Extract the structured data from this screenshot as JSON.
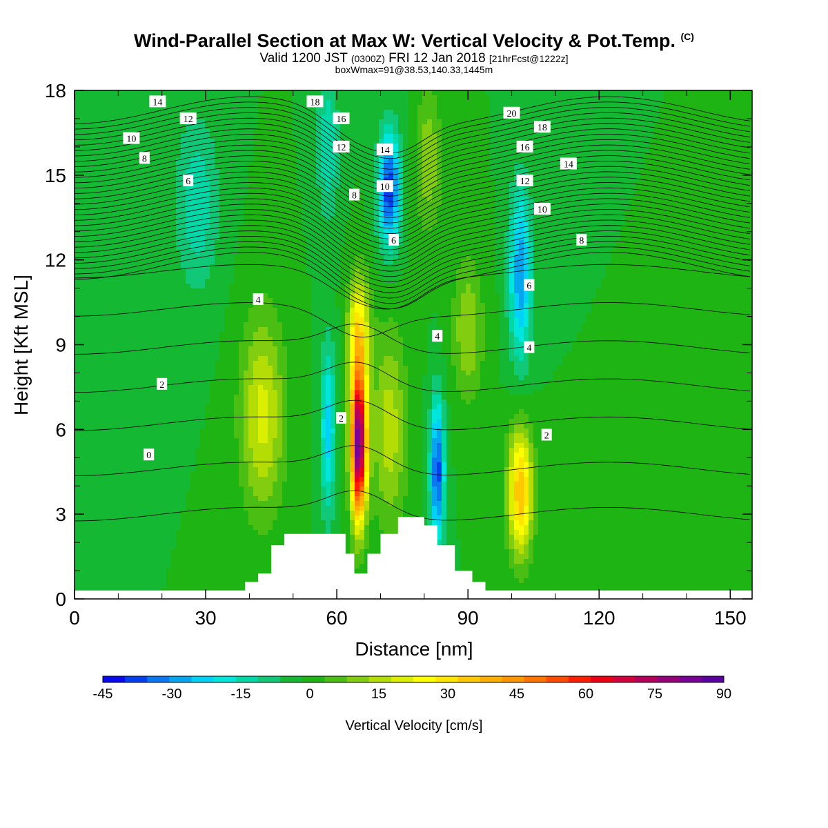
{
  "header": {
    "title": "Wind-Parallel Section at Max W: Vertical Velocity & Pot.Temp.",
    "title_mark": "(C)",
    "valid_prefix": "Valid 1200 JST",
    "valid_utc": "(0300Z)",
    "valid_date": "FRI 12 Jan 2018",
    "forecast_tag": "[21hrFcst@1222z]",
    "boxwmax": "boxWmax=91@38.53,140.33,1445m"
  },
  "colorbar": {
    "label": "Vertical Velocity [cm/s]",
    "tick_labels": [
      "-45",
      "-30",
      "-15",
      "0",
      "15",
      "30",
      "45",
      "60",
      "75",
      "90"
    ],
    "levels": [
      -45,
      -40,
      -35,
      -30,
      -25,
      -20,
      -15,
      -10,
      -5,
      0,
      5,
      10,
      15,
      20,
      25,
      30,
      35,
      40,
      45,
      50,
      55,
      60,
      65,
      70,
      75,
      80,
      85,
      90
    ],
    "colors": [
      "#0a0af0",
      "#0540f0",
      "#0a78f0",
      "#05a5f0",
      "#00d2f5",
      "#00e6dc",
      "#00d8a8",
      "#10c878",
      "#14b832",
      "#1eb414",
      "#4bbe14",
      "#82cd10",
      "#b4dc05",
      "#dcef00",
      "#ffff00",
      "#ffe600",
      "#ffc800",
      "#ffaf00",
      "#ff9600",
      "#ff7300",
      "#ff4b00",
      "#ff1e00",
      "#eb0014",
      "#d2003c",
      "#b4005a",
      "#960078",
      "#780096",
      "#5a00a0"
    ]
  },
  "chart_data": {
    "type": "heatmap",
    "title": "Wind-Parallel Section at Max W: Vertical Velocity & Pot.Temp.",
    "xlabel": "Distance [nm]",
    "ylabel": "Height [Kft MSL]",
    "xlim": [
      0,
      155
    ],
    "ylim": [
      0,
      18
    ],
    "x_ticks": [
      0,
      30,
      60,
      90,
      120,
      150
    ],
    "x_tick_labels": [
      "0",
      "30",
      "60",
      "90",
      "120",
      "150"
    ],
    "y_ticks": [
      0,
      3,
      6,
      9,
      12,
      15,
      18
    ],
    "y_tick_labels": [
      "0",
      "3",
      "6",
      "9",
      "12",
      "15",
      "18"
    ],
    "field": "Vertical Velocity [cm/s]",
    "background_value": 0,
    "features": [
      {
        "kind": "updraft",
        "x": 65,
        "z": 5.5,
        "amplitude": 91,
        "width_x": 1.8,
        "width_z": 2.6
      },
      {
        "kind": "updraft",
        "x": 65,
        "z": 9.5,
        "amplitude": 30,
        "width_x": 2.5,
        "width_z": 2.0
      },
      {
        "kind": "updraft",
        "x": 102,
        "z": 3.8,
        "amplitude": 40,
        "width_x": 2.8,
        "width_z": 2.2
      },
      {
        "kind": "updraft",
        "x": 43,
        "z": 6.5,
        "amplitude": 22,
        "width_x": 5.0,
        "width_z": 3.5
      },
      {
        "kind": "updraft",
        "x": 72,
        "z": 6.0,
        "amplitude": 18,
        "width_x": 4.0,
        "width_z": 3.5
      },
      {
        "kind": "updraft",
        "x": 90,
        "z": 9.5,
        "amplitude": 15,
        "width_x": 3.5,
        "width_z": 2.5
      },
      {
        "kind": "updraft",
        "x": 81,
        "z": 15.5,
        "amplitude": 14,
        "width_x": 3.0,
        "width_z": 2.5
      },
      {
        "kind": "downdraft",
        "x": 58,
        "z": 6.0,
        "amplitude": -22,
        "width_x": 1.8,
        "width_z": 3.0
      },
      {
        "kind": "downdraft",
        "x": 83,
        "z": 4.5,
        "amplitude": -38,
        "width_x": 1.6,
        "width_z": 2.5
      },
      {
        "kind": "downdraft",
        "x": 72,
        "z": 14.5,
        "amplitude": -40,
        "width_x": 2.5,
        "width_z": 2.0
      },
      {
        "kind": "downdraft",
        "x": 102,
        "z": 11.5,
        "amplitude": -30,
        "width_x": 2.5,
        "width_z": 3.0
      },
      {
        "kind": "downdraft",
        "x": 58,
        "z": 16.0,
        "amplitude": -15,
        "width_x": 2.5,
        "width_z": 2.5
      },
      {
        "kind": "downdraft",
        "x": 28,
        "z": 14.0,
        "amplitude": -14,
        "width_x": 5.0,
        "width_z": 3.0
      }
    ],
    "terrain_kft": [
      {
        "x": 0,
        "z": 0.3
      },
      {
        "x": 38,
        "z": 0.3
      },
      {
        "x": 39,
        "z": 0.6
      },
      {
        "x": 42,
        "z": 0.9
      },
      {
        "x": 45,
        "z": 1.9
      },
      {
        "x": 48,
        "z": 2.3
      },
      {
        "x": 61,
        "z": 2.3
      },
      {
        "x": 62,
        "z": 1.6
      },
      {
        "x": 64,
        "z": 0.9
      },
      {
        "x": 67,
        "z": 1.6
      },
      {
        "x": 70,
        "z": 2.3
      },
      {
        "x": 74,
        "z": 2.9
      },
      {
        "x": 80,
        "z": 2.6
      },
      {
        "x": 83,
        "z": 1.9
      },
      {
        "x": 87,
        "z": 1.0
      },
      {
        "x": 91,
        "z": 0.6
      },
      {
        "x": 94,
        "z": 0.3
      },
      {
        "x": 155,
        "z": 0.3
      }
    ],
    "contours": {
      "field": "Potential temperature",
      "label_values": [
        "0",
        "2",
        "4",
        "6",
        "8",
        "10",
        "12",
        "14",
        "16",
        "18",
        "20"
      ]
    },
    "contour_labels": [
      {
        "text": "14",
        "x": 19,
        "z": 17.6
      },
      {
        "text": "12",
        "x": 26,
        "z": 17.0
      },
      {
        "text": "10",
        "x": 13,
        "z": 16.3
      },
      {
        "text": "8",
        "x": 16,
        "z": 15.6
      },
      {
        "text": "6",
        "x": 26,
        "z": 14.8
      },
      {
        "text": "4",
        "x": 42,
        "z": 10.6
      },
      {
        "text": "2",
        "x": 20,
        "z": 7.6
      },
      {
        "text": "0",
        "x": 17,
        "z": 5.1
      },
      {
        "text": "18",
        "x": 55,
        "z": 17.6
      },
      {
        "text": "16",
        "x": 61,
        "z": 17.0
      },
      {
        "text": "12",
        "x": 61,
        "z": 16.0
      },
      {
        "text": "14",
        "x": 71,
        "z": 15.9
      },
      {
        "text": "10",
        "x": 71,
        "z": 14.6
      },
      {
        "text": "8",
        "x": 64,
        "z": 14.3
      },
      {
        "text": "6",
        "x": 73,
        "z": 12.7
      },
      {
        "text": "4",
        "x": 83,
        "z": 9.3
      },
      {
        "text": "2",
        "x": 61,
        "z": 6.4
      },
      {
        "text": "20",
        "x": 100,
        "z": 17.2
      },
      {
        "text": "18",
        "x": 107,
        "z": 16.7
      },
      {
        "text": "16",
        "x": 103,
        "z": 16.0
      },
      {
        "text": "14",
        "x": 113,
        "z": 15.4
      },
      {
        "text": "12",
        "x": 103,
        "z": 14.8
      },
      {
        "text": "10",
        "x": 107,
        "z": 13.8
      },
      {
        "text": "8",
        "x": 116,
        "z": 12.7
      },
      {
        "text": "6",
        "x": 104,
        "z": 11.1
      },
      {
        "text": "4",
        "x": 104,
        "z": 8.9
      },
      {
        "text": "2",
        "x": 108,
        "z": 5.8
      }
    ]
  }
}
